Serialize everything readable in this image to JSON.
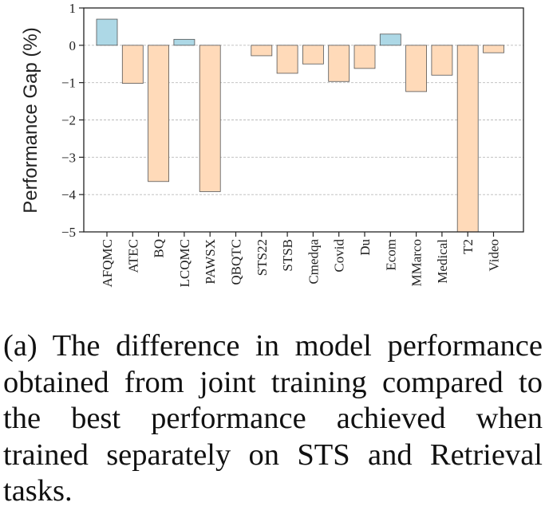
{
  "chart_data": {
    "type": "bar",
    "ylabel": "Performance Gap (%)",
    "xlabel": "",
    "ylim": [
      -5,
      1
    ],
    "yticks": [
      1,
      0,
      -1,
      -2,
      -3,
      -4,
      -5
    ],
    "ytick_labels": [
      "1",
      "0",
      "−1",
      "−2",
      "−3",
      "−4",
      "−5"
    ],
    "grid": true,
    "categories": [
      "AFQMC",
      "ATEC",
      "BQ",
      "LCQMC",
      "PAWSX",
      "QBQTC",
      "STS22",
      "STSB",
      "Cmedqa",
      "Covid",
      "Du",
      "Ecom",
      "MMarco",
      "Medical",
      "T2",
      "Video"
    ],
    "values": [
      0.7,
      -1.02,
      -3.65,
      0.16,
      -3.92,
      0.0,
      -0.28,
      -0.75,
      -0.5,
      -0.97,
      -0.62,
      0.3,
      -1.24,
      -0.8,
      -5.0,
      -0.2
    ],
    "colors": {
      "positive": "#add8e6",
      "negative": "#ffdab9",
      "edge": "#555555",
      "grid": "#bbbbbb"
    }
  },
  "caption": "(a) The difference in model performance obtained from joint training compared to the best performance achieved when trained separately on STS and Retrieval tasks."
}
